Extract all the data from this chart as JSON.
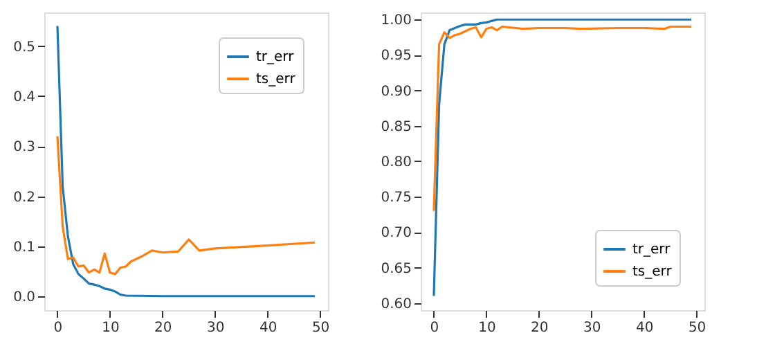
{
  "chart_data": [
    {
      "type": "line",
      "xlim": [
        -2.5,
        51.5
      ],
      "ylim": [
        -0.027,
        0.567
      ],
      "xticks": [
        0,
        10,
        20,
        30,
        40,
        50
      ],
      "yticks": [
        {
          "value": 0,
          "label": "0.0"
        },
        {
          "value": 0.1,
          "label": "0.1"
        },
        {
          "value": 0.2,
          "label": "0.2"
        },
        {
          "value": 0.3,
          "label": "0.3"
        },
        {
          "value": 0.4,
          "label": "0.4"
        },
        {
          "value": 0.5,
          "label": "0.5"
        }
      ],
      "grid": false,
      "legend": "top right",
      "marker": "none",
      "line_style": "solid",
      "series": [
        {
          "name": "tr_err",
          "color": "#1f77b4",
          "x": [
            0,
            1,
            2,
            3,
            4,
            5,
            6,
            7,
            8,
            9,
            10,
            11,
            12,
            13,
            20,
            49
          ],
          "values": [
            0.54,
            0.22,
            0.12,
            0.065,
            0.045,
            0.036,
            0.026,
            0.024,
            0.021,
            0.016,
            0.014,
            0.01,
            0.004,
            0.002,
            0.001,
            0.001
          ]
        },
        {
          "name": "ts_err",
          "color": "#ff7f0e",
          "x": [
            0,
            1,
            2,
            3,
            4,
            5,
            6,
            7,
            8,
            9,
            10,
            11,
            12,
            13,
            14,
            16,
            18,
            20,
            23,
            25,
            27,
            30,
            40,
            49
          ],
          "values": [
            0.32,
            0.14,
            0.075,
            0.078,
            0.06,
            0.062,
            0.048,
            0.054,
            0.048,
            0.086,
            0.048,
            0.045,
            0.058,
            0.06,
            0.07,
            0.08,
            0.092,
            0.088,
            0.09,
            0.114,
            0.092,
            0.096,
            0.102,
            0.108
          ]
        }
      ]
    },
    {
      "type": "line",
      "xlim": [
        -2.5,
        51.5
      ],
      "ylim": [
        0.59,
        1.01
      ],
      "xticks": [
        0,
        10,
        20,
        30,
        40,
        50
      ],
      "yticks": [
        {
          "value": 0.6,
          "label": "0.60"
        },
        {
          "value": 0.65,
          "label": "0.65"
        },
        {
          "value": 0.7,
          "label": "0.70"
        },
        {
          "value": 0.75,
          "label": "0.75"
        },
        {
          "value": 0.8,
          "label": "0.80"
        },
        {
          "value": 0.85,
          "label": "0.85"
        },
        {
          "value": 0.9,
          "label": "0.90"
        },
        {
          "value": 0.95,
          "label": "0.95"
        },
        {
          "value": 1.0,
          "label": "1.00"
        }
      ],
      "grid": false,
      "legend": "bottom right",
      "marker": "none",
      "line_style": "solid",
      "series": [
        {
          "name": "tr_err",
          "color": "#1f77b4",
          "x": [
            0,
            1,
            2,
            3,
            4,
            5,
            6,
            8,
            9,
            10,
            12,
            49
          ],
          "values": [
            0.61,
            0.88,
            0.965,
            0.985,
            0.988,
            0.991,
            0.993,
            0.993,
            0.995,
            0.996,
            1.0,
            1.0
          ]
        },
        {
          "name": "ts_err",
          "color": "#ff7f0e",
          "x": [
            0,
            1,
            2,
            3,
            4,
            5,
            7,
            8,
            9,
            10,
            11,
            12,
            13,
            17,
            20,
            25,
            28,
            35,
            40,
            44,
            45,
            49
          ],
          "values": [
            0.73,
            0.965,
            0.982,
            0.974,
            0.978,
            0.98,
            0.987,
            0.989,
            0.975,
            0.987,
            0.989,
            0.985,
            0.99,
            0.987,
            0.988,
            0.988,
            0.987,
            0.988,
            0.988,
            0.987,
            0.99,
            0.99
          ]
        }
      ]
    }
  ]
}
